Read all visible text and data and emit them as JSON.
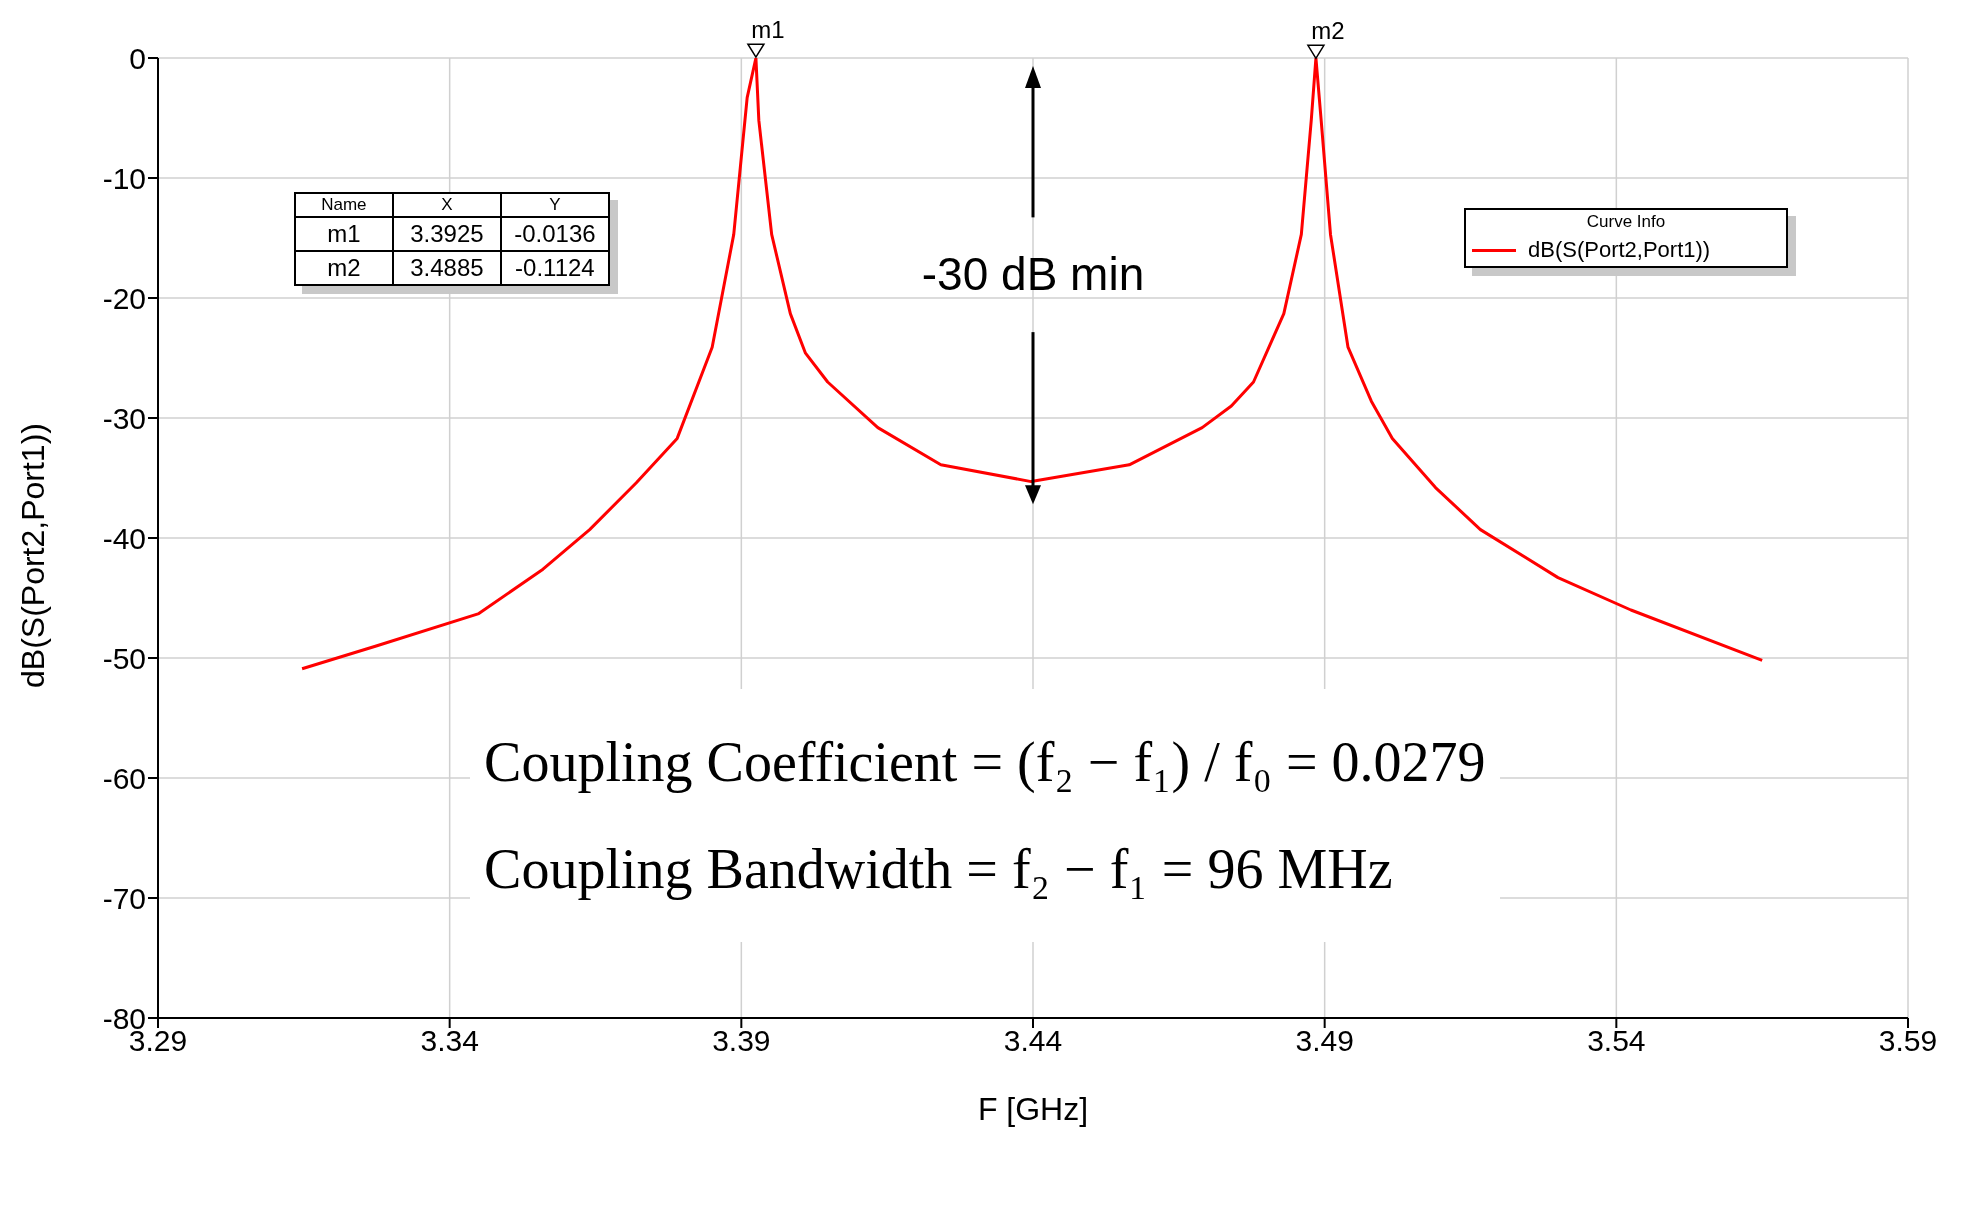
{
  "chart_data": {
    "type": "line",
    "xlabel": "F [GHz]",
    "ylabel": "dB(S(Port2,Port1))",
    "legend_title": "Curve Info",
    "x": [
      3.3147,
      3.3274,
      3.345,
      3.356,
      3.364,
      3.372,
      3.379,
      3.385,
      3.3887,
      3.391,
      3.3925,
      3.393,
      3.3952,
      3.3984,
      3.401,
      3.4048,
      3.4134,
      3.4242,
      3.4397,
      3.4565,
      3.469,
      3.474,
      3.4778,
      3.483,
      3.486,
      3.4877,
      3.4885,
      3.4894,
      3.491,
      3.494,
      3.498,
      3.5016,
      3.509,
      3.5167,
      3.53,
      3.5425,
      3.565
    ],
    "series": [
      {
        "name": "dB(S(Port2,Port1))",
        "color": "#ff0000",
        "values": [
          -50.9,
          -49.0,
          -46.3,
          -42.6,
          -39.3,
          -35.4,
          -31.7,
          -24.1,
          -14.7,
          -3.3,
          0,
          -5.2,
          -14.7,
          -21.3,
          -24.6,
          -27.0,
          -30.8,
          -33.9,
          -35.3,
          -33.9,
          -30.8,
          -29.0,
          -27.0,
          -21.3,
          -14.7,
          -5.2,
          0,
          -5.2,
          -14.7,
          -24.1,
          -28.6,
          -31.7,
          -35.8,
          -39.3,
          -43.3,
          -46.0,
          -50.2
        ]
      }
    ],
    "xlim": [
      3.29,
      3.59
    ],
    "xticks": [
      3.29,
      3.34,
      3.39,
      3.44,
      3.49,
      3.54,
      3.59
    ],
    "ylim": [
      -80,
      0
    ],
    "yticks": [
      -80,
      -70,
      -60,
      -50,
      -40,
      -30,
      -20,
      -10,
      0
    ],
    "grid": true,
    "legend": "top right",
    "marker": "none",
    "line_style": "solid",
    "annotations": [
      {
        "text": "m1",
        "x": 3.3925,
        "y": -0.0136
      },
      {
        "text": "m2",
        "x": 3.4885,
        "y": -0.1124
      },
      "Name",
      "X",
      "Y",
      "m1",
      "3.3925",
      "-0.0136",
      "m2",
      "3.4885",
      "-0.1124",
      "-30 dB min",
      "Coupling Coefficient = (f₂ − f₁) / f₀ = 0.0279",
      "Coupling Bandwidth = f₂ − f₁ = 96 MHz"
    ]
  }
}
